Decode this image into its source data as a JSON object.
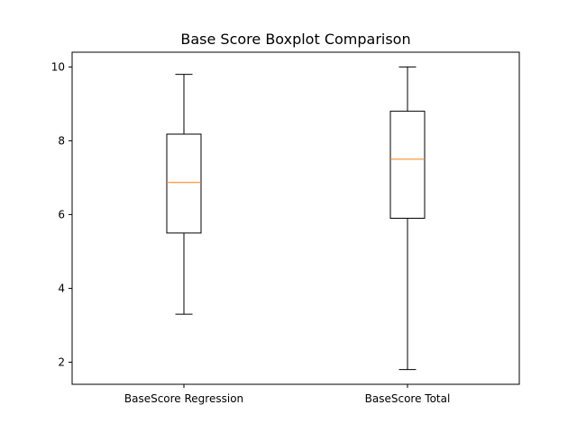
{
  "chart_data": {
    "type": "boxplot",
    "title": "Base Score Boxplot Comparison",
    "xlabel": "",
    "ylabel": "",
    "categories": [
      "BaseScore Regression",
      "BaseScore Total"
    ],
    "boxes": [
      {
        "whislo": 3.3,
        "q1": 5.5,
        "med": 6.87,
        "q3": 8.18,
        "whishi": 9.8
      },
      {
        "whislo": 1.8,
        "q1": 5.9,
        "med": 7.5,
        "q3": 8.8,
        "whishi": 10.0
      }
    ],
    "ylim": [
      1.4,
      10.4
    ],
    "yticks": [
      2,
      4,
      6,
      8,
      10
    ],
    "grid": false,
    "legend": "none",
    "colors": {
      "box": "#000000",
      "median": "#ff7f0e"
    }
  }
}
